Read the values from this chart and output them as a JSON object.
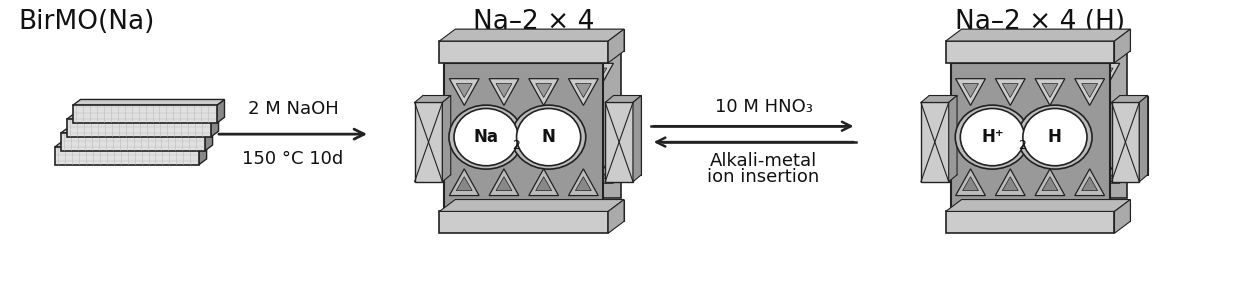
{
  "title_left": "BirMO(Na)",
  "title_center": "Na–2 × 4",
  "title_right": "Na–2 × 4 (H)",
  "arrow1_label_top": "2 M NaOH",
  "arrow1_label_bot": "150 °C 10d",
  "arrow2_label_top": "10 M HNO₃",
  "arrow2_label_bot_1": "Alkali-metal",
  "arrow2_label_bot_2": "ion insertion",
  "center_ion1": "Na",
  "center_ion2": "N",
  "right_ion1": "H⁺",
  "right_ion2": "H",
  "subscript": "2",
  "bg_color": "#ffffff",
  "text_color": "#111111",
  "col_dark": "#222222",
  "col_med": "#777777",
  "col_light": "#bbbbbb",
  "col_bg_struct": "#999999",
  "col_side": "#aaaaaa",
  "font_size_title": 19,
  "font_size_label": 13,
  "font_size_ion": 12,
  "font_size_sub": 9,
  "font_size_caption": 9
}
